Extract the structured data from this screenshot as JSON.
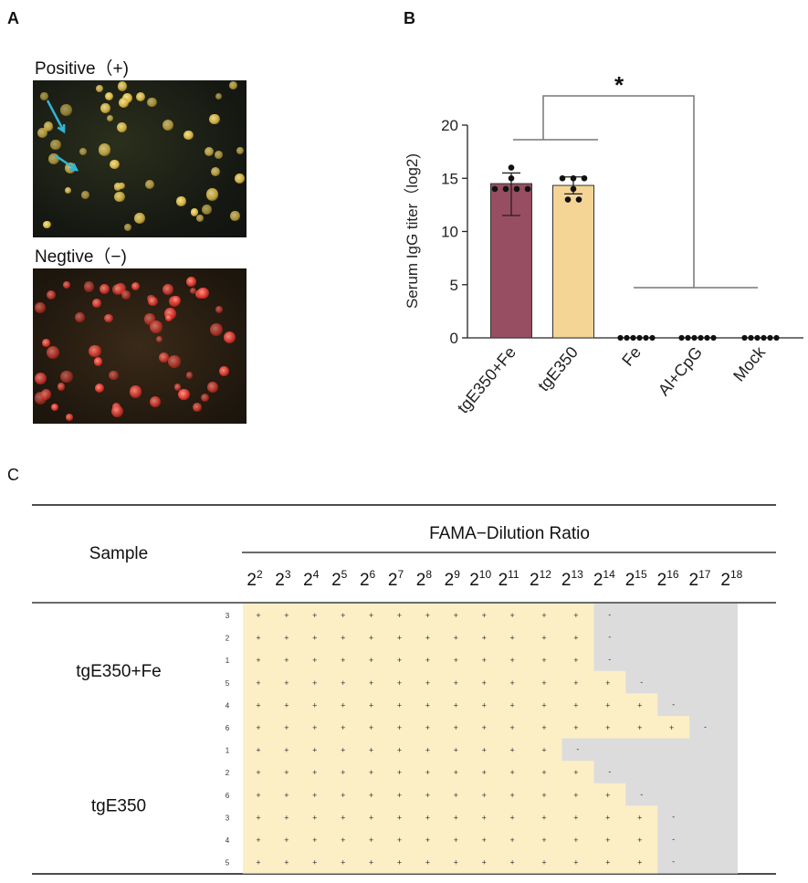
{
  "panels": {
    "a_letter": "A",
    "b_letter": "B",
    "c_letter": "C"
  },
  "panel_a": {
    "positive_label": "Positive（+)",
    "negative_label": "Negtive（−)",
    "colors": {
      "positive_cell": "#d9b23a",
      "negative_cell": "#e0302a",
      "arrow": "#2fb6d6"
    }
  },
  "chart_data": {
    "type": "bar",
    "ylabel": "Serum IgG titer（log2)",
    "xlabel": "",
    "ylim": [
      0,
      20
    ],
    "yticks": [
      0,
      5,
      10,
      15,
      20
    ],
    "categories": [
      "tgE350+Fe",
      "tgE350",
      "Fe",
      "Al+CpG",
      "Mock"
    ],
    "values": [
      14.5,
      14.33,
      0,
      0,
      0
    ],
    "error_sd": [
      3.0,
      0.8,
      0,
      0,
      0
    ],
    "points": [
      [
        16,
        15,
        14,
        14,
        14,
        14
      ],
      [
        15,
        15,
        15,
        14,
        13,
        13
      ],
      [
        0,
        0,
        0,
        0,
        0,
        0
      ],
      [
        0,
        0,
        0,
        0,
        0,
        0
      ],
      [
        0,
        0,
        0,
        0,
        0,
        0
      ]
    ],
    "bar_colors": [
      "#974d62",
      "#f5d596",
      null,
      null,
      null
    ],
    "significance": "*"
  },
  "table": {
    "header_sample": "Sample",
    "header_ratio": "FAMA−Dilution Ratio",
    "dilution_base": "2",
    "dilution_exponents": [
      "2",
      "3",
      "4",
      "5",
      "6",
      "7",
      "8",
      "9",
      "10",
      "11",
      "12",
      "13",
      "14",
      "15",
      "16",
      "17",
      "18"
    ],
    "groups": [
      {
        "name": "tgE350+Fe",
        "rows": [
          {
            "id": "3",
            "positives": 12
          },
          {
            "id": "2",
            "positives": 12
          },
          {
            "id": "1",
            "positives": 12
          },
          {
            "id": "5",
            "positives": 13
          },
          {
            "id": "4",
            "positives": 14
          },
          {
            "id": "6",
            "positives": 15
          }
        ]
      },
      {
        "name": "tgE350",
        "rows": [
          {
            "id": "1",
            "positives": 11
          },
          {
            "id": "2",
            "positives": 12
          },
          {
            "id": "6",
            "positives": 13
          },
          {
            "id": "3",
            "positives": 14
          },
          {
            "id": "4",
            "positives": 14
          },
          {
            "id": "5",
            "positives": 14
          }
        ]
      }
    ],
    "plus_symbol": "+",
    "minus_symbol": "-",
    "colors": {
      "positive_fill": "#fcefc6",
      "negative_fill": "#dcdcdc"
    }
  }
}
